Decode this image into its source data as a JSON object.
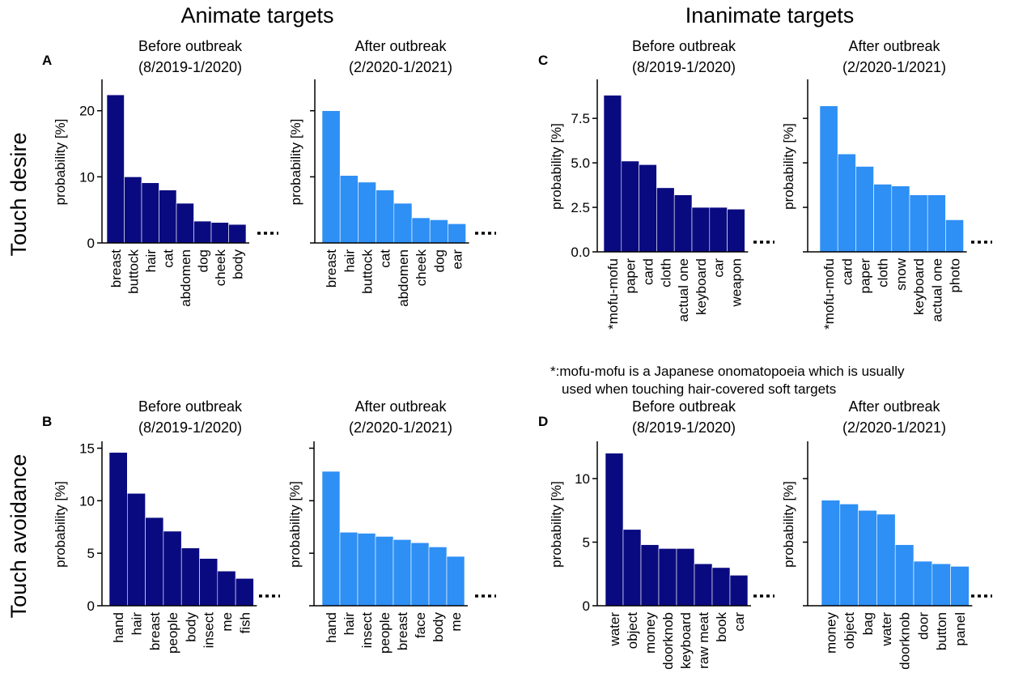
{
  "figure": {
    "column_headers": [
      "Animate targets",
      "Inanimate targets"
    ],
    "row_headers": [
      "Touch desire",
      "Touch avoidance"
    ],
    "ylabel": "probability [%]",
    "colors": {
      "before": "#0a0a80",
      "after": "#2e8ff5"
    },
    "note_line1": "*:mofu-mofu is a Japanese onomatopoeia which is usually",
    "note_line2": "used when touching hair-covered soft targets",
    "continuation": "..."
  },
  "chart_data": [
    {
      "panel": "A",
      "type": "bar",
      "title": [
        "Before outbreak",
        "(8/2019-1/2020)"
      ],
      "color": "before",
      "categories": [
        "breast",
        "buttock",
        "hair",
        "cat",
        "abdomen",
        "dog",
        "cheek",
        "body"
      ],
      "values": [
        22.4,
        10.0,
        9.1,
        8.0,
        6.0,
        3.3,
        3.1,
        2.8
      ],
      "ylim": [
        0,
        24.5
      ],
      "yticks": [
        0,
        10,
        20
      ],
      "ytick_labels": [
        "0",
        "10",
        "20"
      ]
    },
    {
      "panel": "",
      "type": "bar",
      "title": [
        "After outbreak",
        "(2/2020-1/2021)"
      ],
      "color": "after",
      "categories": [
        "breast",
        "hair",
        "buttock",
        "cat",
        "abdomen",
        "cheek",
        "dog",
        "ear"
      ],
      "values": [
        20.0,
        10.2,
        9.2,
        8.0,
        6.0,
        3.8,
        3.5,
        2.9
      ],
      "ylim": [
        0,
        24.5
      ],
      "yticks": [
        0,
        10,
        20
      ],
      "ytick_labels": []
    },
    {
      "panel": "C",
      "type": "bar",
      "title": [
        "Before outbreak",
        "(8/2019-1/2020)"
      ],
      "color": "before",
      "categories": [
        "*mofu-mofu",
        "paper",
        "card",
        "cloth",
        "actual one",
        "keyboard",
        "car",
        "weapon"
      ],
      "values": [
        8.8,
        5.1,
        4.9,
        3.6,
        3.2,
        2.5,
        2.5,
        2.4
      ],
      "ylim": [
        0,
        9.6
      ],
      "yticks": [
        0,
        2.5,
        5.0,
        7.5
      ],
      "ytick_labels": [
        "0.0",
        "2.5",
        "5.0",
        "7.5"
      ]
    },
    {
      "panel": "",
      "type": "bar",
      "title": [
        "After outbreak",
        "(2/2020-1/2021)"
      ],
      "color": "after",
      "categories": [
        "*mofu-mofu",
        "card",
        "paper",
        "cloth",
        "snow",
        "keyboard",
        "actual one",
        "photo"
      ],
      "values": [
        8.2,
        5.5,
        4.8,
        3.8,
        3.7,
        3.2,
        3.2,
        1.8
      ],
      "ylim": [
        0,
        9.6
      ],
      "yticks": [
        0,
        2.5,
        5.0,
        7.5
      ],
      "ytick_labels": []
    },
    {
      "panel": "B",
      "type": "bar",
      "title": [
        "Before outbreak",
        "(8/2019-1/2020)"
      ],
      "color": "before",
      "categories": [
        "hand",
        "hair",
        "breast",
        "people",
        "body",
        "insect",
        "me",
        "fish"
      ],
      "values": [
        14.6,
        10.7,
        8.4,
        7.1,
        5.5,
        4.5,
        3.3,
        2.6
      ],
      "ylim": [
        0,
        15.5
      ],
      "yticks": [
        0,
        5,
        10,
        15
      ],
      "ytick_labels": [
        "0",
        "5",
        "10",
        "15"
      ]
    },
    {
      "panel": "",
      "type": "bar",
      "title": [
        "After outbreak",
        "(2/2020-1/2021)"
      ],
      "color": "after",
      "categories": [
        "hand",
        "hair",
        "insect",
        "people",
        "breast",
        "face",
        "body",
        "me"
      ],
      "values": [
        12.8,
        7.0,
        6.9,
        6.6,
        6.3,
        6.0,
        5.6,
        4.7
      ],
      "ylim": [
        0,
        15.5
      ],
      "yticks": [
        0,
        5,
        10,
        15
      ],
      "ytick_labels": []
    },
    {
      "panel": "D",
      "type": "bar",
      "title": [
        "Before outbreak",
        "(8/2019-1/2020)"
      ],
      "color": "before",
      "categories": [
        "water",
        "object",
        "money",
        "doorknob",
        "keyboard",
        "raw meat",
        "book",
        "car"
      ],
      "values": [
        12.0,
        6.0,
        4.8,
        4.5,
        4.5,
        3.3,
        3.0,
        2.4
      ],
      "ylim": [
        0,
        12.8
      ],
      "yticks": [
        0,
        5,
        10
      ],
      "ytick_labels": [
        "0",
        "5",
        "10"
      ]
    },
    {
      "panel": "",
      "type": "bar",
      "title": [
        "After outbreak",
        "(2/2020-1/2021)"
      ],
      "color": "after",
      "categories": [
        "money",
        "object",
        "bag",
        "water",
        "doorknob",
        "door",
        "button",
        "panel"
      ],
      "values": [
        8.3,
        8.0,
        7.5,
        7.2,
        4.8,
        3.5,
        3.3,
        3.1
      ],
      "ylim": [
        0,
        12.8
      ],
      "yticks": [
        0,
        5,
        10
      ],
      "ytick_labels": []
    }
  ]
}
